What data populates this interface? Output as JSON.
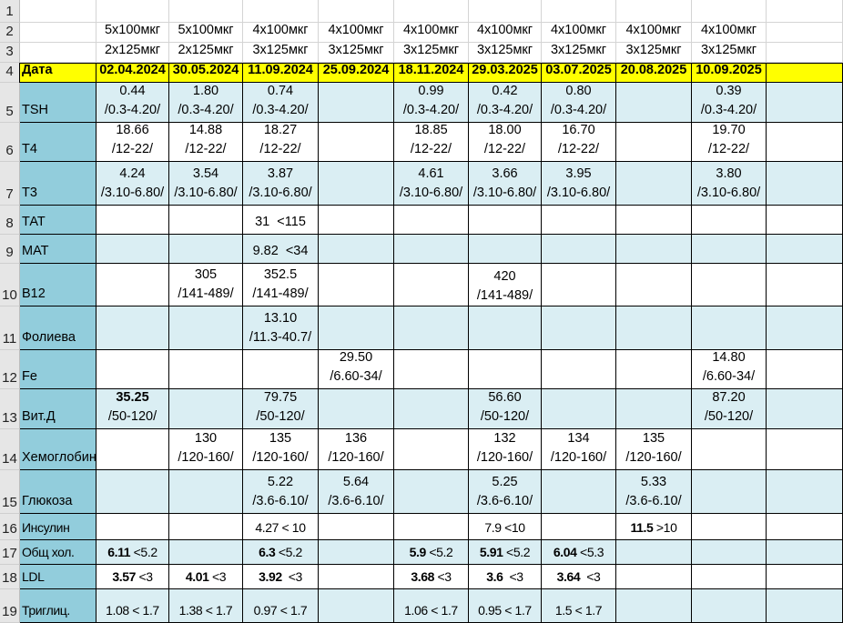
{
  "sheet": {
    "row_numbers": [
      "1",
      "2",
      "3",
      "4",
      "5",
      "6",
      "7",
      "8",
      "9",
      "10",
      "11",
      "12",
      "13",
      "14",
      "15",
      "16",
      "17",
      "18",
      "19"
    ],
    "dosage_row1": [
      "5x100мкг",
      "5x100мкг",
      "4x100мкг",
      "4x100мкг",
      "4x100мкг",
      "4x100мкг",
      "4x100мкг",
      "4x100мкг",
      "4x100мкг"
    ],
    "dosage_row2": [
      "2x125мкг",
      "2x125мкг",
      "3x125мкг",
      "3x125мкг",
      "3x125мкг",
      "3x125мкг",
      "3x125мкг",
      "3x125мкг",
      "3x125мкг"
    ],
    "date_label": "Дата",
    "dates": [
      "02.04.2024",
      "30.05.2024",
      "11.09.2024",
      "25.09.2024",
      "18.11.2024",
      "29.03.2025",
      "03.07.2025",
      "20.08.2025",
      "10.09.2025"
    ],
    "rows": [
      {
        "label": "TSH",
        "cells": [
          [
            "0.44",
            "/0.3-4.20/"
          ],
          [
            "1.80",
            "/0.3-4.20/"
          ],
          [
            "0.74",
            "/0.3-4.20/"
          ],
          null,
          [
            "0.99",
            "/0.3-4.20/"
          ],
          [
            "0.42",
            "/0.3-4.20/"
          ],
          [
            "0.80",
            "/0.3-4.20/"
          ],
          null,
          [
            "0.39",
            "/0.3-4.20/"
          ],
          null
        ]
      },
      {
        "label": "T4",
        "cells": [
          [
            "18.66",
            "/12-22/"
          ],
          [
            "14.88",
            "/12-22/"
          ],
          [
            "18.27",
            "/12-22/"
          ],
          null,
          [
            "18.85",
            "/12-22/"
          ],
          [
            "18.00",
            "/12-22/"
          ],
          [
            "16.70",
            "/12-22/"
          ],
          null,
          [
            "19.70",
            "/12-22/"
          ],
          null
        ]
      },
      {
        "label": "T3",
        "cells": [
          [
            "4.24",
            "/3.10-6.80/"
          ],
          [
            "3.54",
            "/3.10-6.80/"
          ],
          [
            "3.87",
            "/3.10-6.80/"
          ],
          null,
          [
            "4.61",
            "/3.10-6.80/"
          ],
          [
            "3.66",
            "/3.10-6.80/"
          ],
          [
            "3.95",
            "/3.10-6.80/"
          ],
          null,
          [
            "3.80",
            "/3.10-6.80/"
          ],
          null
        ]
      },
      {
        "label": "ТАТ",
        "cells": [
          null,
          null,
          [
            "31  <115"
          ],
          null,
          null,
          null,
          null,
          null,
          null,
          null
        ]
      },
      {
        "label": "МАТ",
        "cells": [
          null,
          null,
          [
            "9.82  <34"
          ],
          null,
          null,
          null,
          null,
          null,
          null,
          null
        ]
      },
      {
        "label": "B12",
        "cells": [
          null,
          [
            "305",
            "/141-489/"
          ],
          [
            "352.5",
            "/141-489/"
          ],
          null,
          null,
          [
            "420",
            "/141-489/",
            ""
          ],
          null,
          null,
          null,
          null
        ]
      },
      {
        "label": "Фолиева",
        "cells": [
          null,
          null,
          [
            "13.10",
            "/11.3-40.7/"
          ],
          null,
          null,
          null,
          null,
          null,
          null,
          null
        ]
      },
      {
        "label": "Fe",
        "cells": [
          null,
          null,
          null,
          [
            "29.50",
            "/6.60-34/"
          ],
          null,
          null,
          null,
          null,
          [
            "14.80",
            "/6.60-34/"
          ],
          null
        ]
      },
      {
        "label": "Вит.Д",
        "cells": [
          [
            {
              "b": "35.25",
              "t": ""
            },
            "/50-120/"
          ],
          null,
          [
            "79.75",
            "/50-120/"
          ],
          null,
          null,
          [
            "56.60",
            "/50-120/"
          ],
          null,
          null,
          [
            "87.20",
            "/50-120/"
          ],
          null
        ]
      },
      {
        "label": "Хемоглобин",
        "cells": [
          null,
          [
            "130",
            "/120-160/"
          ],
          [
            "135",
            "/120-160/"
          ],
          [
            "136",
            "/120-160/"
          ],
          null,
          [
            "132",
            "/120-160/"
          ],
          [
            "134",
            "/120-160/"
          ],
          [
            "135",
            "/120-160/"
          ],
          null,
          null
        ]
      },
      {
        "label": "Глюкоза",
        "cells": [
          null,
          null,
          [
            "5.22",
            "/3.6-6.10/"
          ],
          [
            "5.64",
            "/3.6-6.10/"
          ],
          null,
          [
            "5.25",
            "/3.6-6.10/"
          ],
          null,
          [
            "5.33",
            "/3.6-6.10/"
          ],
          null,
          null
        ]
      },
      {
        "label": "Инсулин",
        "cells": [
          null,
          null,
          [
            "4.27 < 10"
          ],
          null,
          null,
          [
            "7.9 <10"
          ],
          null,
          [
            {
              "b": "11.5",
              "t": " >10"
            }
          ],
          null,
          null
        ]
      },
      {
        "label": "Общ хол.",
        "cells": [
          [
            {
              "b": "6.11",
              "t": " <5.2"
            }
          ],
          null,
          [
            {
              "b": "6.3",
              "t": " <5.2"
            }
          ],
          null,
          [
            {
              "b": "5.9",
              "t": " <5.2"
            }
          ],
          [
            {
              "b": "5.91",
              "t": " <5.2"
            }
          ],
          [
            {
              "b": "6.04",
              "t": " <5.3"
            }
          ],
          null,
          null,
          null
        ]
      },
      {
        "label": "LDL",
        "cells": [
          [
            {
              "b": "3.57",
              "t": " <3"
            }
          ],
          [
            {
              "b": "4.01",
              "t": " <3"
            }
          ],
          [
            {
              "b": "3.92",
              "t": "  <3"
            }
          ],
          null,
          [
            {
              "b": "3.68",
              "t": " <3"
            }
          ],
          [
            {
              "b": "3.6",
              "t": "  <3"
            }
          ],
          [
            {
              "b": "3.64",
              "t": "  <3"
            }
          ],
          null,
          null,
          null
        ]
      },
      {
        "label": "Триглиц.",
        "cells": [
          [
            "1.08 < 1.7"
          ],
          [
            "1.38 < 1.7"
          ],
          [
            "0.97 < 1.7"
          ],
          null,
          [
            "1.06 < 1.7"
          ],
          [
            "0.95 < 1.7"
          ],
          [
            "1.5 < 1.7"
          ],
          null,
          null,
          null
        ]
      }
    ]
  },
  "colors": {
    "header_yellow": "#ffff00",
    "label_teal": "#92cddc",
    "band_light": "#daeef3",
    "grid": "#000000"
  }
}
